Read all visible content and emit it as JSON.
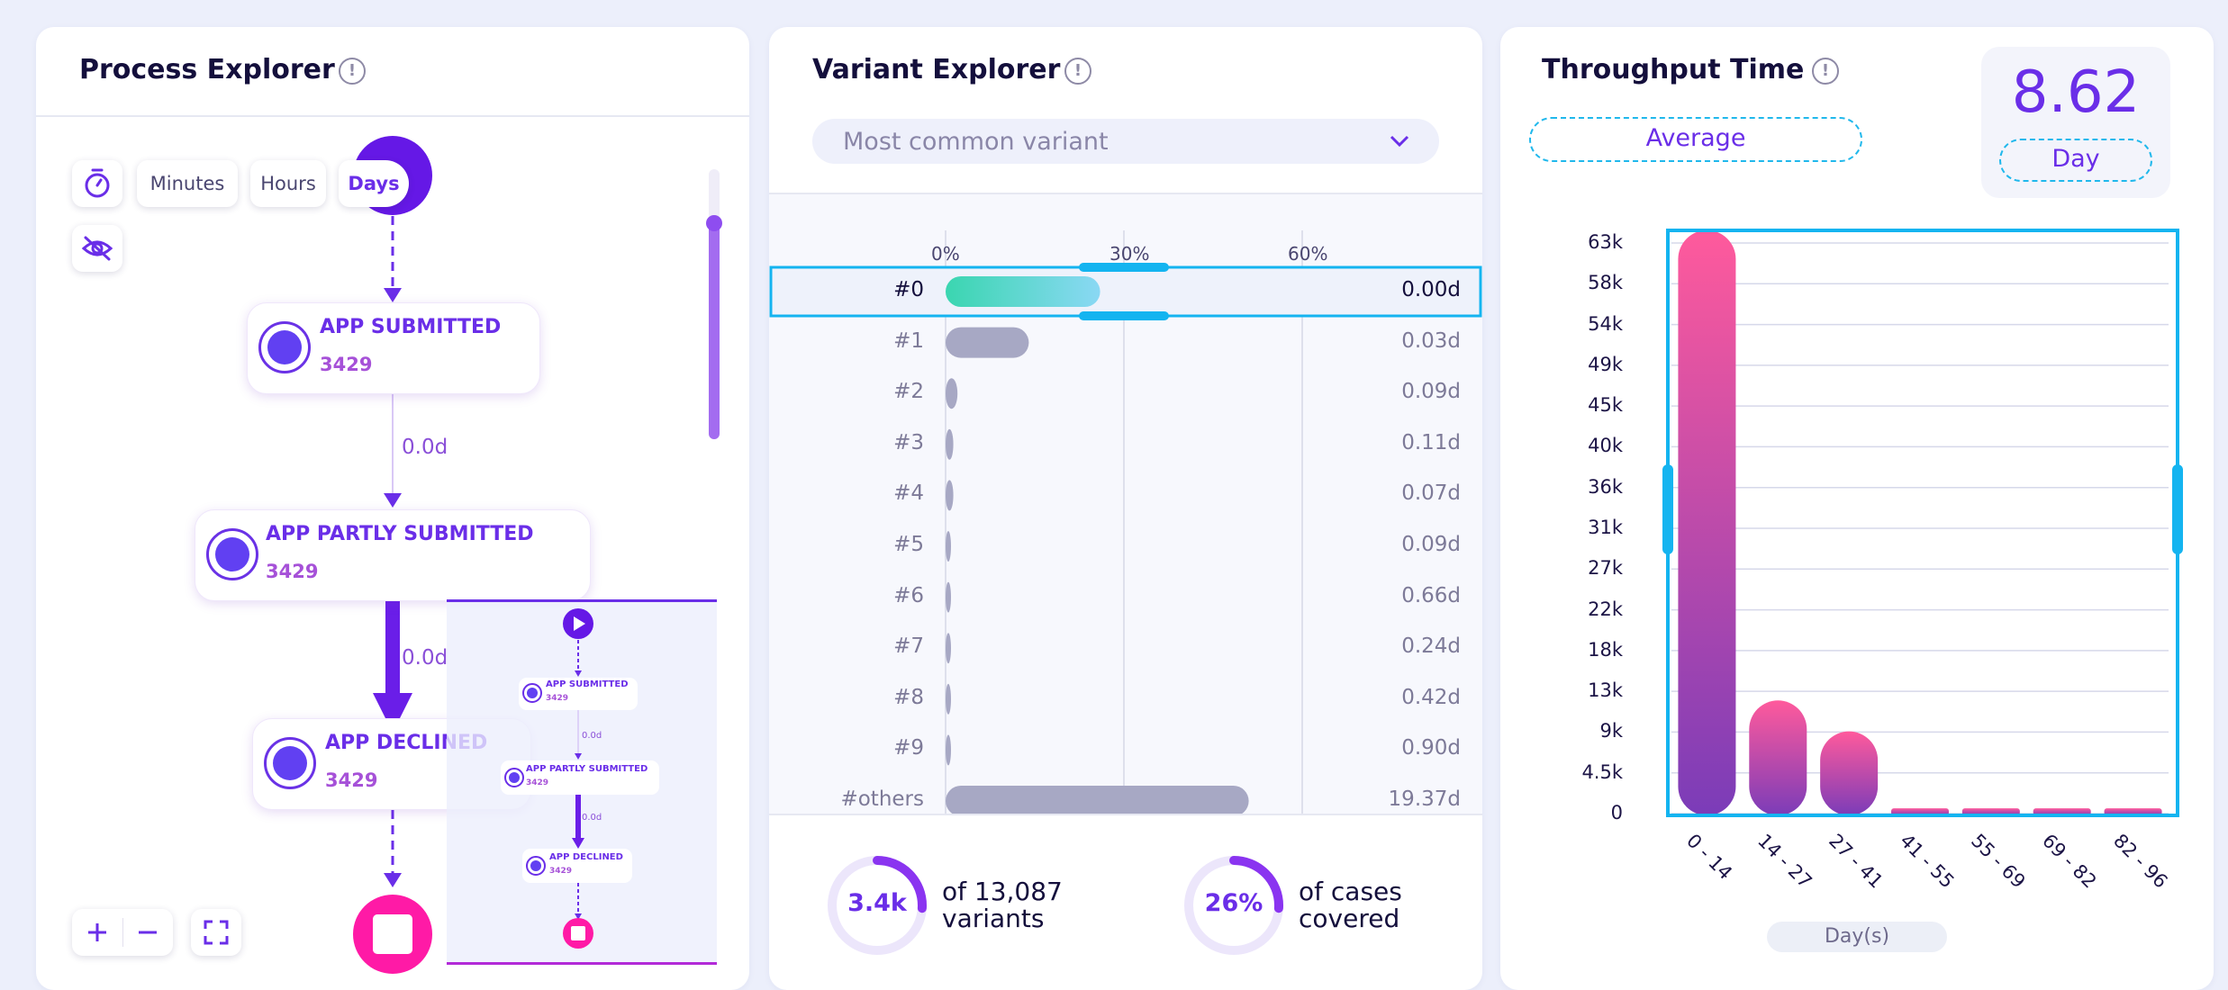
{
  "process_explorer": {
    "title": "Process Explorer",
    "info_icon": "info-icon",
    "time_units": [
      "Minutes",
      "Hours",
      "Days"
    ],
    "selected_unit": "Days",
    "nodes": [
      {
        "label": "APP SUBMITTED",
        "count": "3429"
      },
      {
        "label": "APP PARTLY SUBMITTED",
        "count": "3429"
      },
      {
        "label": "APP DECLINED",
        "count": "3429"
      }
    ],
    "edges": [
      "0.0d",
      "0.0d"
    ],
    "slider_level": 0.8,
    "minimap": {
      "nodes": [
        {
          "label": "APP SUBMITTED",
          "count": "3429"
        },
        {
          "label": "APP PARTLY SUBMITTED",
          "count": "3429"
        },
        {
          "label": "APP DECLINED",
          "count": "3429"
        }
      ],
      "edges": [
        "0.0d",
        "0.0d"
      ]
    }
  },
  "variant_explorer": {
    "title": "Variant Explorer",
    "dropdown_value": "Most common variant",
    "axis_ticks": [
      "0%",
      "30%",
      "60%"
    ],
    "rows": [
      {
        "label": "#0",
        "percent": 26,
        "value": "0.00d"
      },
      {
        "label": "#1",
        "percent": 14,
        "value": "0.03d"
      },
      {
        "label": "#2",
        "percent": 2,
        "value": "0.09d"
      },
      {
        "label": "#3",
        "percent": 1.3,
        "value": "0.11d"
      },
      {
        "label": "#4",
        "percent": 1.3,
        "value": "0.07d"
      },
      {
        "label": "#5",
        "percent": 0.8,
        "value": "0.09d"
      },
      {
        "label": "#6",
        "percent": 0.8,
        "value": "0.66d"
      },
      {
        "label": "#7",
        "percent": 0.8,
        "value": "0.24d"
      },
      {
        "label": "#8",
        "percent": 0.8,
        "value": "0.42d"
      },
      {
        "label": "#9",
        "percent": 0.8,
        "value": "0.90d"
      },
      {
        "label": "#others",
        "percent": 51,
        "value": "19.37d"
      }
    ],
    "selected_row": 0,
    "summary": [
      {
        "value": "3.4k",
        "fraction": 0.26,
        "line1": "of 13,087",
        "line2": "variants"
      },
      {
        "value": "26%",
        "fraction": 0.26,
        "line1": "of cases",
        "line2": "covered"
      }
    ]
  },
  "throughput": {
    "title": "Throughput Time",
    "aggregate_button": "Average",
    "big_value": "8.62",
    "unit_button": "Day",
    "x_axis_title": "Day(s)"
  },
  "chart_data": {
    "type": "bar",
    "categories": [
      "0 - 14",
      "14 - 27",
      "27 - 41",
      "41 - 55",
      "55 - 69",
      "69 - 82",
      "82 - 96"
    ],
    "values": [
      66000,
      12800,
      9300,
      600,
      600,
      600,
      600
    ],
    "y_ticks": [
      "0",
      "4.5k",
      "9k",
      "13k",
      "18k",
      "22k",
      "27k",
      "31k",
      "36k",
      "40k",
      "45k",
      "49k",
      "54k",
      "58k",
      "63k"
    ],
    "ylim": [
      0,
      67000
    ],
    "xlabel": "Day(s)",
    "bar_gradient": [
      "#ff5a9c",
      "#7b3cb8"
    ],
    "selection_color": "#14b4f0"
  },
  "colors": {
    "accent": "#6a2ee8",
    "pink": "#ff1aa6",
    "selection": "#14b4f0",
    "bar": "#a7a8c4"
  }
}
